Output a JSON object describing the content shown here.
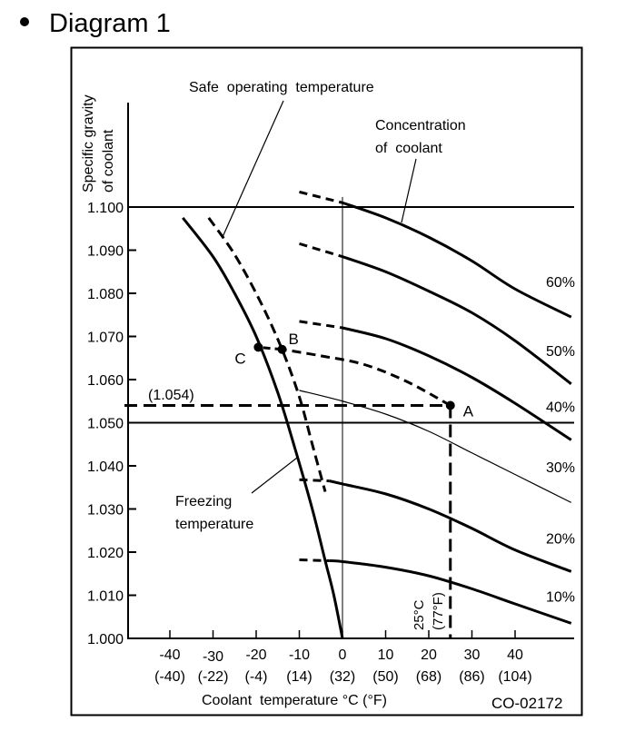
{
  "heading": {
    "bullet": "•",
    "title": "Diagram 1"
  },
  "chart_data": {
    "type": "line",
    "title": "Diagram 1",
    "ylabel": [
      "Specific gravity",
      "of coolant"
    ],
    "xlabel": "Coolant  temperature °C (°F)",
    "figure_code": "CO-02172",
    "ylim": [
      1.0,
      1.1
    ],
    "xlim": [
      -50,
      53
    ],
    "grid": false,
    "y_ticks": [
      {
        "value": 1.1,
        "label": "1.100"
      },
      {
        "value": 1.09,
        "label": "1.090"
      },
      {
        "value": 1.08,
        "label": "1.080"
      },
      {
        "value": 1.07,
        "label": "1.070"
      },
      {
        "value": 1.06,
        "label": "1.060"
      },
      {
        "value": 1.05,
        "label": "1.050"
      },
      {
        "value": 1.04,
        "label": "1.040"
      },
      {
        "value": 1.03,
        "label": "1.030"
      },
      {
        "value": 1.02,
        "label": "1.020"
      },
      {
        "value": 1.01,
        "label": "1.010"
      },
      {
        "value": 1.0,
        "label": "1.000"
      }
    ],
    "x_ticks": [
      {
        "value": -40,
        "c": "-40",
        "f": "(-40)"
      },
      {
        "value": -30,
        "c": "-30",
        "f": "(-22)"
      },
      {
        "value": -20,
        "c": "-20",
        "f": "(-4)"
      },
      {
        "value": -10,
        "c": "-10",
        "f": "(14)"
      },
      {
        "value": 0,
        "c": "0",
        "f": "(32)"
      },
      {
        "value": 10,
        "c": "10",
        "f": "(50)"
      },
      {
        "value": 20,
        "c": "20",
        "f": "(68)"
      },
      {
        "value": 30,
        "c": "30",
        "f": "(86)"
      },
      {
        "value": 40,
        "c": "40",
        "f": "(104)"
      }
    ],
    "reference_lines": {
      "horizontal_solid": [
        1.1,
        1.05
      ],
      "vertical_thin": [
        0
      ]
    },
    "series": [
      {
        "name": "60%",
        "label": "60%",
        "style": "solid-thick",
        "dashed_part": [
          [
            -10,
            1.1035
          ],
          [
            0,
            1.101
          ]
        ],
        "points": [
          [
            0,
            1.101
          ],
          [
            10,
            1.0975
          ],
          [
            20,
            1.093
          ],
          [
            30,
            1.0875
          ],
          [
            40,
            1.081
          ],
          [
            53,
            1.0745
          ]
        ]
      },
      {
        "name": "50%",
        "label": "50%",
        "style": "solid-thick",
        "dashed_part": [
          [
            -10,
            1.0915
          ],
          [
            0,
            1.0885
          ]
        ],
        "points": [
          [
            0,
            1.0885
          ],
          [
            10,
            1.085
          ],
          [
            20,
            1.0805
          ],
          [
            30,
            1.0755
          ],
          [
            40,
            1.069
          ],
          [
            53,
            1.059
          ]
        ]
      },
      {
        "name": "40%",
        "label": "40%",
        "style": "solid-thick",
        "dashed_part": [
          [
            -10,
            1.0735
          ],
          [
            0,
            1.072
          ]
        ],
        "points": [
          [
            0,
            1.072
          ],
          [
            10,
            1.0695
          ],
          [
            20,
            1.0655
          ],
          [
            30,
            1.0605
          ],
          [
            40,
            1.0545
          ],
          [
            53,
            1.046
          ]
        ]
      },
      {
        "name": "30%",
        "label": "30%",
        "style": "solid-thin",
        "dashed_part": [],
        "points": [
          [
            -10,
            1.0575
          ],
          [
            0,
            1.055
          ],
          [
            10,
            1.052
          ],
          [
            20,
            1.048
          ],
          [
            30,
            1.043
          ],
          [
            40,
            1.038
          ],
          [
            53,
            1.0315
          ]
        ]
      },
      {
        "name": "20%",
        "label": "20%",
        "style": "solid-thick",
        "dashed_part": [
          [
            -10,
            1.0368
          ],
          [
            -3,
            1.0365
          ]
        ],
        "points": [
          [
            -3,
            1.0365
          ],
          [
            0,
            1.0358
          ],
          [
            10,
            1.0335
          ],
          [
            20,
            1.03
          ],
          [
            30,
            1.0255
          ],
          [
            40,
            1.0205
          ],
          [
            53,
            1.0155
          ]
        ]
      },
      {
        "name": "10%",
        "label": "10%",
        "style": "solid-thick",
        "dashed_part": [
          [
            -10,
            1.0182
          ],
          [
            -3,
            1.018
          ]
        ],
        "points": [
          [
            -3,
            1.018
          ],
          [
            0,
            1.0178
          ],
          [
            10,
            1.0165
          ],
          [
            20,
            1.0145
          ],
          [
            30,
            1.0115
          ],
          [
            40,
            1.008
          ],
          [
            53,
            1.0035
          ]
        ]
      },
      {
        "name": "Freezing temperature",
        "label": "Freezing\ntemperature",
        "style": "solid-thick",
        "points": [
          [
            -37,
            1.0975
          ],
          [
            -30,
            1.0885
          ],
          [
            -25,
            1.08
          ],
          [
            -20,
            1.07
          ],
          [
            -15,
            1.057
          ],
          [
            -11,
            1.044
          ],
          [
            -7,
            1.03
          ],
          [
            -4,
            1.018
          ],
          [
            -2,
            1.01
          ],
          [
            0,
            1.0
          ]
        ]
      },
      {
        "name": "Safe operating temperature",
        "label": "Safe  operating  temperature",
        "style": "dashed",
        "points": [
          [
            -31,
            1.0975
          ],
          [
            -25,
            1.089
          ],
          [
            -19,
            1.078
          ],
          [
            -14,
            1.067
          ],
          [
            -10,
            1.056
          ],
          [
            -7,
            1.045
          ],
          [
            -4,
            1.034
          ]
        ]
      }
    ],
    "annotations": {
      "concentration_label": [
        "Concentration",
        "of  coolant"
      ],
      "points": [
        {
          "name": "A",
          "x": 25,
          "y": 1.054
        },
        {
          "name": "B",
          "x": -14,
          "y": 1.067
        },
        {
          "name": "C",
          "x": -19.5,
          "y": 1.0675
        }
      ],
      "path_A_to_B": [
        [
          25,
          1.054
        ],
        [
          15,
          1.0595
        ],
        [
          5,
          1.0635
        ],
        [
          -5,
          1.0655
        ],
        [
          -14,
          1.067
        ]
      ],
      "measured_value_label": "(1.054)",
      "measured_value": 1.054,
      "reference_temperature": {
        "value": 25,
        "label_c": "25°C",
        "label_f": "(77°F)"
      }
    }
  }
}
